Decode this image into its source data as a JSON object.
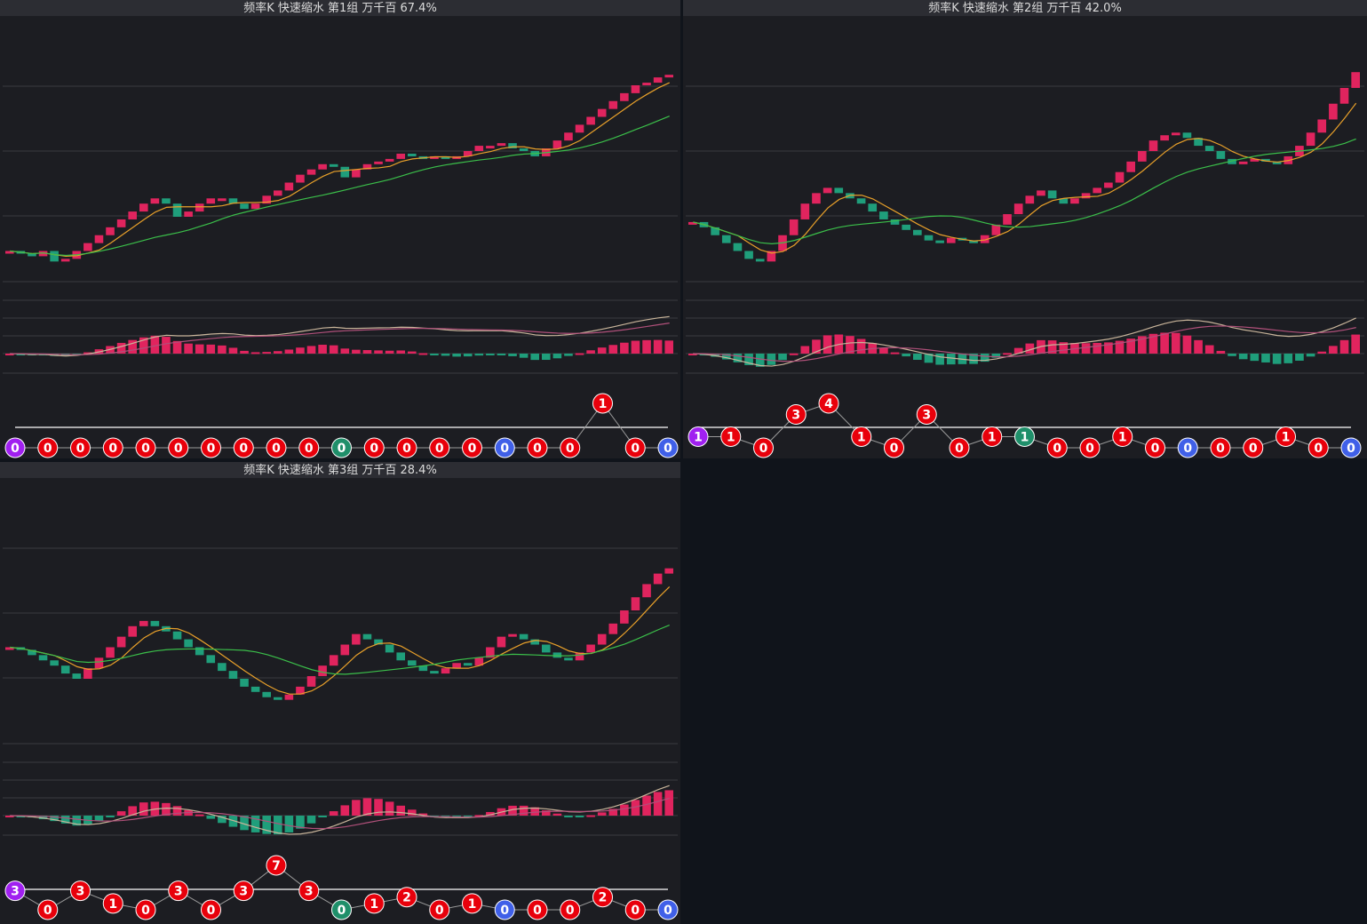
{
  "panels": [
    {
      "title": "频率K  快速缩水  第1组  万千百  67.4%",
      "ylim": [
        0,
        100
      ],
      "closes": [
        12,
        11,
        10,
        12,
        8,
        9,
        12,
        15,
        18,
        21,
        24,
        27,
        30,
        32,
        30,
        25,
        27,
        30,
        32,
        32,
        30,
        28,
        30,
        33,
        35,
        38,
        41,
        43,
        45,
        44,
        40,
        43,
        45,
        46,
        47,
        49,
        48,
        47,
        48,
        47,
        48,
        50,
        52,
        52,
        53,
        51,
        50,
        48,
        51,
        54,
        57,
        60,
        63,
        66,
        69,
        72,
        75,
        76,
        78,
        79
      ],
      "circles": {
        "values": [
          0,
          0,
          0,
          0,
          0,
          0,
          0,
          0,
          0,
          0,
          0,
          0,
          0,
          0,
          0,
          0,
          0,
          0,
          1,
          0,
          0
        ],
        "colors": [
          "#a020f0",
          "#e8000b",
          "#e8000b",
          "#e8000b",
          "#e8000b",
          "#e8000b",
          "#e8000b",
          "#e8000b",
          "#e8000b",
          "#e8000b",
          "#1f8f6a",
          "#e8000b",
          "#e8000b",
          "#e8000b",
          "#e8000b",
          "#4060e8",
          "#e8000b",
          "#e8000b",
          "#e8000b",
          "#e8000b",
          "#4060e8"
        ]
      }
    },
    {
      "title": "频率K  快速缩水  第2组  万千百  42.0%",
      "ylim": [
        0,
        100
      ],
      "closes": [
        23,
        21,
        18,
        15,
        12,
        9,
        8,
        12,
        18,
        24,
        30,
        34,
        36,
        34,
        32,
        30,
        27,
        24,
        22,
        20,
        18,
        16,
        15,
        17,
        16,
        15,
        18,
        22,
        26,
        30,
        33,
        35,
        32,
        30,
        32,
        34,
        36,
        38,
        42,
        46,
        50,
        54,
        56,
        57,
        55,
        52,
        50,
        47,
        45,
        46,
        47,
        46,
        45,
        48,
        52,
        57,
        62,
        68,
        74,
        80
      ],
      "circles": {
        "values": [
          1,
          1,
          0,
          3,
          4,
          1,
          0,
          3,
          0,
          1,
          1,
          0,
          0,
          1,
          0,
          0,
          0,
          0,
          1,
          0,
          0
        ],
        "colors": [
          "#a020f0",
          "#e8000b",
          "#e8000b",
          "#e8000b",
          "#e8000b",
          "#e8000b",
          "#e8000b",
          "#e8000b",
          "#e8000b",
          "#e8000b",
          "#1f8f6a",
          "#e8000b",
          "#e8000b",
          "#e8000b",
          "#e8000b",
          "#4060e8",
          "#e8000b",
          "#e8000b",
          "#e8000b",
          "#e8000b",
          "#4060e8"
        ]
      }
    },
    {
      "title": "频率K  快速缩水  第3组  万千百  28.4%",
      "ylim": [
        0,
        100
      ],
      "closes": [
        37,
        36,
        34,
        32,
        30,
        27,
        25,
        29,
        33,
        37,
        41,
        45,
        47,
        45,
        43,
        40,
        37,
        34,
        31,
        28,
        25,
        22,
        20,
        18,
        17,
        19,
        22,
        26,
        30,
        34,
        38,
        42,
        40,
        38,
        35,
        32,
        30,
        28,
        27,
        29,
        31,
        30,
        33,
        37,
        41,
        42,
        40,
        38,
        35,
        33,
        32,
        35,
        38,
        42,
        46,
        51,
        56,
        61,
        65,
        67
      ],
      "circles": {
        "values": [
          3,
          0,
          3,
          1,
          0,
          3,
          0,
          3,
          7,
          3,
          0,
          1,
          2,
          0,
          1,
          0,
          0,
          0,
          2,
          0,
          0
        ],
        "colors": [
          "#a020f0",
          "#e8000b",
          "#e8000b",
          "#e8000b",
          "#e8000b",
          "#e8000b",
          "#e8000b",
          "#e8000b",
          "#e8000b",
          "#e8000b",
          "#1f8f6a",
          "#e8000b",
          "#e8000b",
          "#e8000b",
          "#e8000b",
          "#4060e8",
          "#e8000b",
          "#e8000b",
          "#e8000b",
          "#e8000b",
          "#4060e8"
        ]
      }
    }
  ]
}
